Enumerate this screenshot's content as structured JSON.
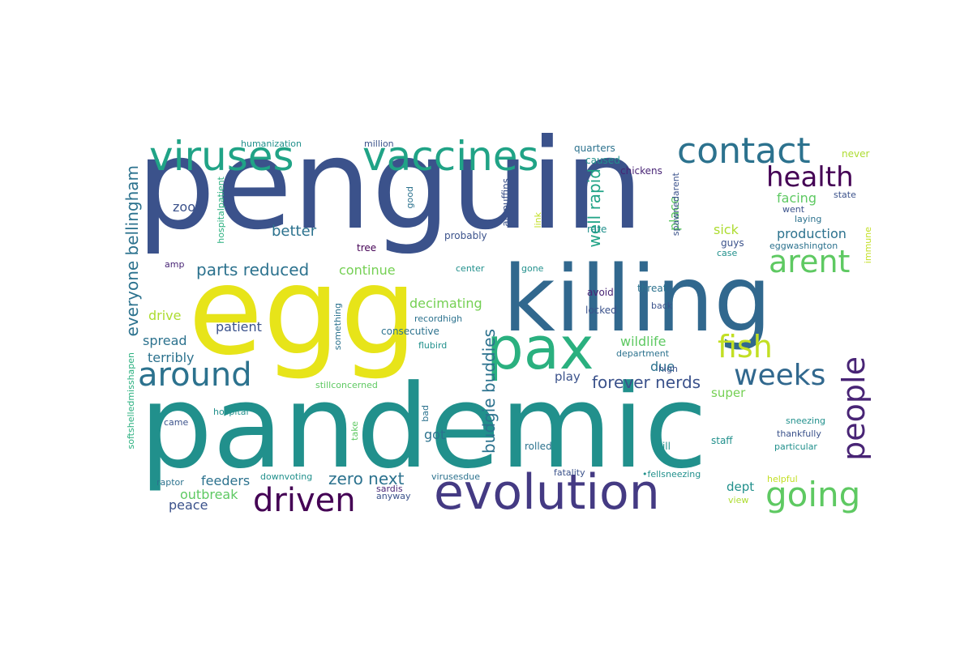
{
  "words": [
    {
      "id": "penguin",
      "text": "penguin",
      "color": "#3b528b"
    },
    {
      "id": "pandemic",
      "text": "pandemic",
      "color": "#21908c"
    },
    {
      "id": "egg",
      "text": "egg",
      "color": "#e7e419"
    },
    {
      "id": "killing",
      "text": "killing",
      "color": "#31688e"
    },
    {
      "id": "evolution",
      "text": "evolution",
      "color": "#443a83"
    },
    {
      "id": "viruses",
      "text": "viruses",
      "color": "#20a386"
    },
    {
      "id": "vaccines",
      "text": "vaccines",
      "color": "#20a386"
    },
    {
      "id": "pax",
      "text": "pax",
      "color": "#2ab07f"
    },
    {
      "id": "contact",
      "text": "contact",
      "color": "#2c728e"
    },
    {
      "id": "health",
      "text": "health",
      "color": "#440154"
    },
    {
      "id": "arent",
      "text": "arent",
      "color": "#5ec962"
    },
    {
      "id": "fish",
      "text": "fish",
      "color": "#c2df23"
    },
    {
      "id": "around",
      "text": "around",
      "color": "#2c728e"
    },
    {
      "id": "weeks",
      "text": "weeks",
      "color": "#31688e"
    },
    {
      "id": "people",
      "text": "people",
      "color": "#482475"
    },
    {
      "id": "driven",
      "text": "driven",
      "color": "#440154"
    },
    {
      "id": "going",
      "text": "going",
      "color": "#5ec962"
    },
    {
      "id": "everyone-bellingham",
      "text": "everyone bellingham",
      "color": "#2c728e"
    },
    {
      "id": "budgie-buddies",
      "text": "budgie buddies",
      "color": "#2c728e"
    },
    {
      "id": "parts-reduced",
      "text": "parts reduced",
      "color": "#2c728e"
    },
    {
      "id": "well-rapid",
      "text": "well rapid",
      "color": "#20a386"
    },
    {
      "id": "forever-nerds",
      "text": "forever nerds",
      "color": "#3b528b"
    },
    {
      "id": "zero-next",
      "text": "zero next",
      "color": "#2c728e"
    },
    {
      "id": "better",
      "text": "better",
      "color": "#2c728e"
    },
    {
      "id": "continue",
      "text": "continue",
      "color": "#75d054"
    },
    {
      "id": "decimating",
      "text": "decimating",
      "color": "#75d054"
    },
    {
      "id": "production",
      "text": "production",
      "color": "#2c728e"
    },
    {
      "id": "sick",
      "text": "sick",
      "color": "#addc30"
    },
    {
      "id": "place",
      "text": "place",
      "color": "#5ec962"
    },
    {
      "id": "wildlife",
      "text": "wildlife",
      "color": "#5ec962"
    },
    {
      "id": "facing",
      "text": "facing",
      "color": "#5ec962"
    },
    {
      "id": "zoo",
      "text": "zoo",
      "color": "#3b528b"
    },
    {
      "id": "drive",
      "text": "drive",
      "color": "#addc30"
    },
    {
      "id": "spread",
      "text": "spread",
      "color": "#2c728e"
    },
    {
      "id": "patient",
      "text": "patient",
      "color": "#3b528b"
    },
    {
      "id": "terribly",
      "text": "terribly",
      "color": "#2c728e"
    },
    {
      "id": "due",
      "text": "due",
      "color": "#2c728e"
    },
    {
      "id": "play",
      "text": "play",
      "color": "#3b528b"
    },
    {
      "id": "feeders",
      "text": "feeders",
      "color": "#2c728e"
    },
    {
      "id": "outbreak",
      "text": "outbreak",
      "color": "#5ec962"
    },
    {
      "id": "peace",
      "text": "peace",
      "color": "#3b528b"
    },
    {
      "id": "got",
      "text": "got",
      "color": "#2c728e"
    },
    {
      "id": "super",
      "text": "super",
      "color": "#75d054"
    },
    {
      "id": "dept",
      "text": "dept",
      "color": "#21908c"
    },
    {
      "id": "humanization",
      "text": "humanization",
      "color": "#21908c"
    },
    {
      "id": "million",
      "text": "million",
      "color": "#3b528b"
    },
    {
      "id": "quarters",
      "text": "quarters",
      "color": "#2c728e"
    },
    {
      "id": "caused",
      "text": "caused",
      "color": "#21908c"
    },
    {
      "id": "chickens",
      "text": "chickens",
      "color": "#482475"
    },
    {
      "id": "never",
      "text": "never",
      "color": "#addc30"
    },
    {
      "id": "hospitalpatient",
      "text": "hospitalpatient",
      "color": "#2ab07f"
    },
    {
      "id": "good",
      "text": "good",
      "color": "#2c728e"
    },
    {
      "id": "ampuffins",
      "text": "ampuffins",
      "color": "#3b528b"
    },
    {
      "id": "link",
      "text": "link",
      "color": "#c2df23"
    },
    {
      "id": "spawnedarent",
      "text": "spawnedarent",
      "color": "#3b528b"
    },
    {
      "id": "state",
      "text": "state",
      "color": "#3b528b"
    },
    {
      "id": "went",
      "text": "went",
      "color": "#3b528b"
    },
    {
      "id": "laying",
      "text": "laying",
      "color": "#2c728e"
    },
    {
      "id": "rate",
      "text": "rate",
      "color": "#21908c"
    },
    {
      "id": "guys",
      "text": "guys",
      "color": "#3b528b"
    },
    {
      "id": "eggwashington",
      "text": "eggwashington",
      "color": "#2c728e"
    },
    {
      "id": "immune",
      "text": "immune",
      "color": "#c2df23"
    },
    {
      "id": "probably",
      "text": "probably",
      "color": "#3b528b"
    },
    {
      "id": "tree",
      "text": "tree",
      "color": "#440154"
    },
    {
      "id": "case",
      "text": "case",
      "color": "#21908c"
    },
    {
      "id": "amp",
      "text": "amp",
      "color": "#482475"
    },
    {
      "id": "center",
      "text": "center",
      "color": "#21908c"
    },
    {
      "id": "gone",
      "text": "gone",
      "color": "#21908c"
    },
    {
      "id": "avoid",
      "text": "avoid",
      "color": "#482475"
    },
    {
      "id": "threat",
      "text": "threat",
      "color": "#2c728e"
    },
    {
      "id": "locked",
      "text": "locked",
      "color": "#3b528b"
    },
    {
      "id": "back",
      "text": "back",
      "color": "#3b528b"
    },
    {
      "id": "something",
      "text": "something",
      "color": "#2c728e"
    },
    {
      "id": "recordhigh",
      "text": "recordhigh",
      "color": "#2c728e"
    },
    {
      "id": "consecutive",
      "text": "consecutive",
      "color": "#2c728e"
    },
    {
      "id": "flubird",
      "text": "flubird",
      "color": "#21908c"
    },
    {
      "id": "department",
      "text": "department",
      "color": "#2c728e"
    },
    {
      "id": "high",
      "text": "high",
      "color": "#3b528b"
    },
    {
      "id": "stillconcerned",
      "text": "stillconcerned",
      "color": "#5ec962"
    },
    {
      "id": "softshelledmisshapen",
      "text": "softshelledmisshapen",
      "color": "#2ab07f"
    },
    {
      "id": "hospital",
      "text": "hospital",
      "color": "#21908c"
    },
    {
      "id": "bad",
      "text": "bad",
      "color": "#2c728e"
    },
    {
      "id": "came",
      "text": "came",
      "color": "#3b528b"
    },
    {
      "id": "take",
      "text": "take",
      "color": "#5ec962"
    },
    {
      "id": "rolled",
      "text": "rolled",
      "color": "#2c728e"
    },
    {
      "id": "still",
      "text": "still",
      "color": "#21908c"
    },
    {
      "id": "staff",
      "text": "staff",
      "color": "#21908c"
    },
    {
      "id": "sneezing",
      "text": "sneezing",
      "color": "#21908c"
    },
    {
      "id": "thankfully",
      "text": "thankfully",
      "color": "#3b528b"
    },
    {
      "id": "particular",
      "text": "particular",
      "color": "#21908c"
    },
    {
      "id": "raptor",
      "text": "raptor",
      "color": "#2c728e"
    },
    {
      "id": "downvoting",
      "text": "downvoting",
      "color": "#21908c"
    },
    {
      "id": "virusesdue",
      "text": "virusesdue",
      "color": "#2c728e"
    },
    {
      "id": "fatality",
      "text": "fatality",
      "color": "#3b528b"
    },
    {
      "id": "fellsneezing",
      "text": "•fellsneezing",
      "color": "#21908c"
    },
    {
      "id": "helpful",
      "text": "helpful",
      "color": "#c2df23"
    },
    {
      "id": "sardis",
      "text": "sardis",
      "color": "#482475"
    },
    {
      "id": "anyway",
      "text": "anyway",
      "color": "#3b528b"
    },
    {
      "id": "view",
      "text": "view",
      "color": "#addc30"
    }
  ]
}
